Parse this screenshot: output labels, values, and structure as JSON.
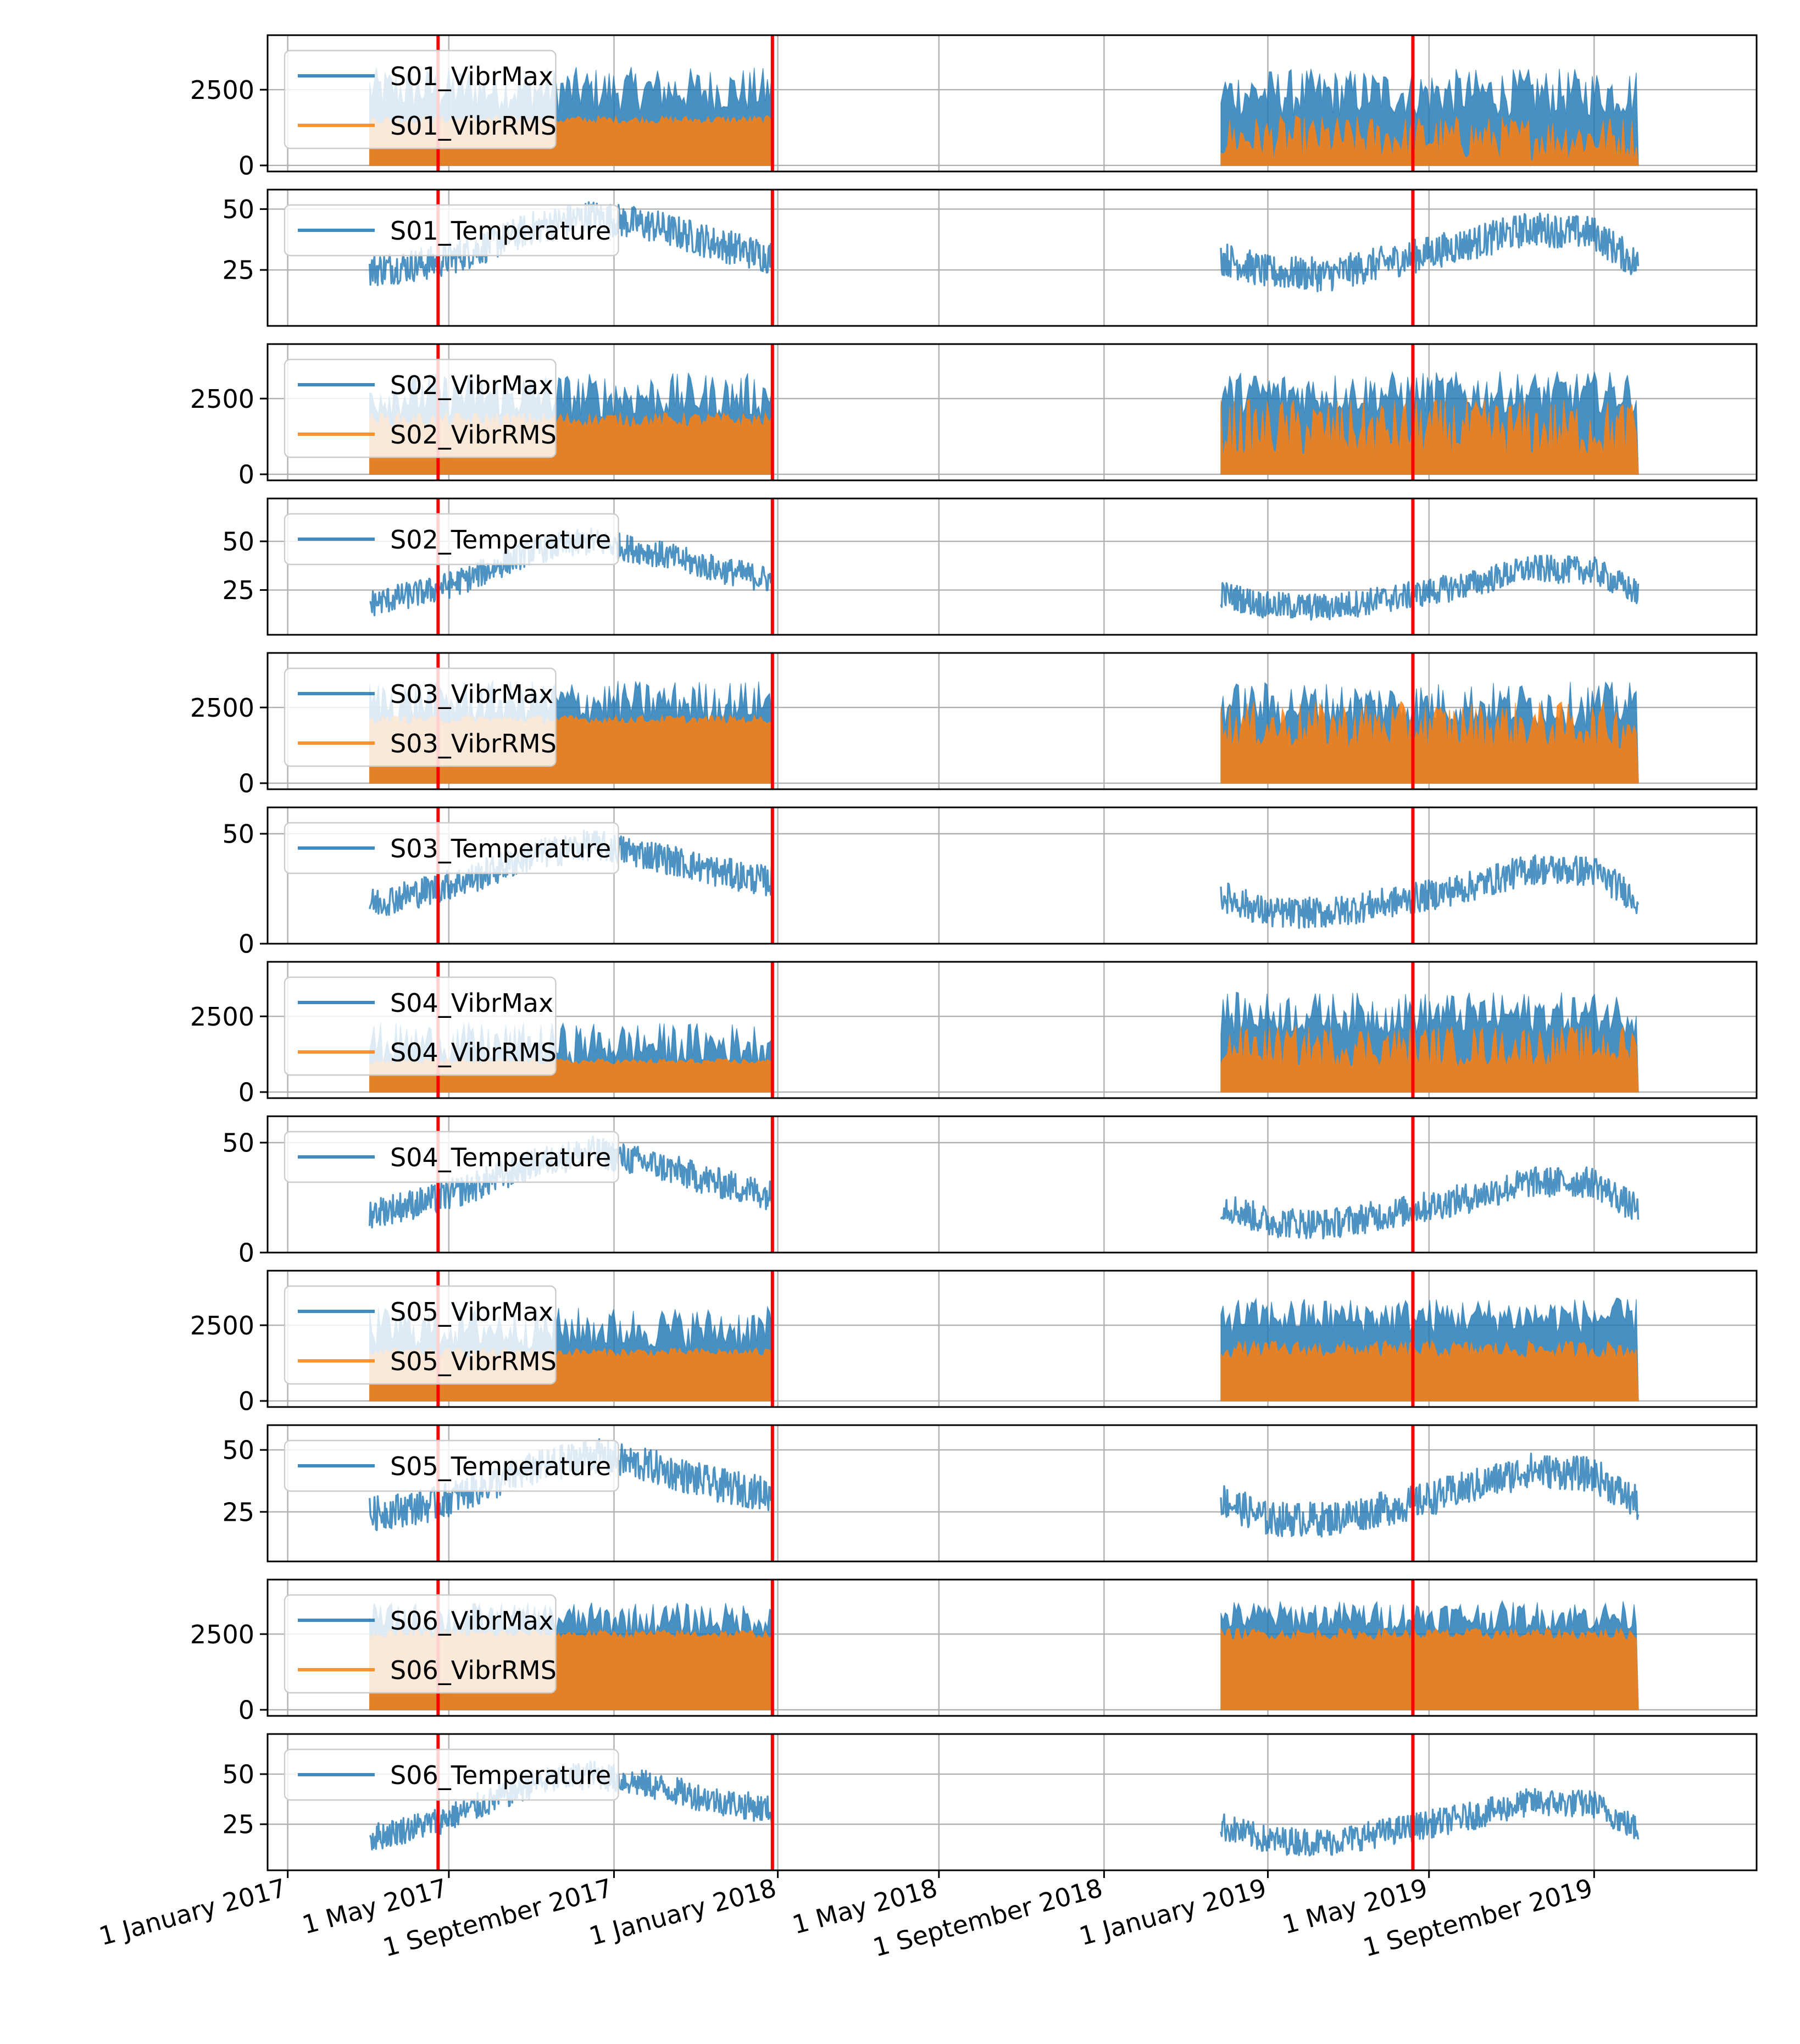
{
  "chart_data": {
    "type": "line",
    "x_axis": {
      "scale": "time",
      "range": [
        "2016-12-17",
        "2019-12-31"
      ],
      "ticks": [
        {
          "date": "2017-01-01",
          "label": "1 January 2017"
        },
        {
          "date": "2017-05-01",
          "label": "1 May 2017"
        },
        {
          "date": "2017-09-01",
          "label": "1 September 2017"
        },
        {
          "date": "2018-01-01",
          "label": "1 January 2018"
        },
        {
          "date": "2018-05-01",
          "label": "1 May 2018"
        },
        {
          "date": "2018-09-01",
          "label": "1 September 2018"
        },
        {
          "date": "2019-01-01",
          "label": "1 January 2019"
        },
        {
          "date": "2019-05-01",
          "label": "1 May 2019"
        },
        {
          "date": "2019-09-01",
          "label": "1 September 2019"
        }
      ],
      "tick_label_rotation": "slanted"
    },
    "grid": true,
    "legend_placement": "top-left",
    "series_colors": {
      "primary": "#1f77b4",
      "secondary": "#ff7f0e",
      "marker_line": "#ff0000"
    },
    "marker_lines": [
      "2017-04-23",
      "2017-12-28",
      "2019-04-19"
    ],
    "data_periods": [
      {
        "start": "2017-03-03",
        "end": "2017-12-28"
      },
      {
        "start": "2018-11-27",
        "end": "2019-10-04"
      }
    ],
    "panels": [
      {
        "id": "s01-vibr",
        "kind": "vibration",
        "yticks": [
          0,
          2500
        ],
        "ylim": [
          -200,
          4300
        ],
        "series": [
          {
            "name": "S01_VibrMax",
            "color": "#1f77b4",
            "segments": [
              {
                "start": "2017-03-03",
                "end": "2017-12-28",
                "base": 2500,
                "spread": 1500
              },
              {
                "start": "2018-11-27",
                "end": "2019-10-04",
                "base": 2400,
                "spread": 1600
              }
            ]
          },
          {
            "name": "S01_VibrRMS",
            "color": "#ff7f0e",
            "segments": [
              {
                "start": "2017-03-03",
                "end": "2017-12-28",
                "base": 1500,
                "spread": 300
              },
              {
                "start": "2018-11-27",
                "end": "2019-10-04",
                "base": 900,
                "spread": 1500
              }
            ]
          }
        ]
      },
      {
        "id": "s01-temp",
        "kind": "temperature",
        "yticks": [
          25,
          50
        ],
        "ylim": [
          2,
          58
        ],
        "series": [
          {
            "name": "S01_Temperature",
            "color": "#1f77b4",
            "points": [
              [
                "2017-03-03",
                25
              ],
              [
                "2017-04-20",
                28
              ],
              [
                "2017-05-20",
                33
              ],
              [
                "2017-07-01",
                42
              ],
              [
                "2017-08-15",
                47
              ],
              [
                "2017-10-01",
                43
              ],
              [
                "2017-11-15",
                36
              ],
              [
                "2017-12-28",
                30
              ],
              [
                "2018-11-27",
                30
              ],
              [
                "2019-01-01",
                24
              ],
              [
                "2019-02-15",
                23
              ],
              [
                "2019-04-15",
                30
              ],
              [
                "2019-06-01",
                36
              ],
              [
                "2019-07-15",
                42
              ],
              [
                "2019-09-01",
                40
              ],
              [
                "2019-10-04",
                27
              ]
            ]
          }
        ]
      },
      {
        "id": "s02-vibr",
        "kind": "vibration",
        "yticks": [
          0,
          2500
        ],
        "ylim": [
          -200,
          4300
        ],
        "series": [
          {
            "name": "S02_VibrMax",
            "color": "#1f77b4",
            "segments": [
              {
                "start": "2017-03-03",
                "end": "2017-12-28",
                "base": 2600,
                "spread": 1500
              },
              {
                "start": "2018-11-27",
                "end": "2019-10-04",
                "base": 2700,
                "spread": 1400
              }
            ]
          },
          {
            "name": "S02_VibrRMS",
            "color": "#ff7f0e",
            "segments": [
              {
                "start": "2017-03-03",
                "end": "2017-12-28",
                "base": 1800,
                "spread": 500
              },
              {
                "start": "2018-11-27",
                "end": "2019-10-04",
                "base": 1500,
                "spread": 2000
              }
            ]
          }
        ]
      },
      {
        "id": "s02-temp",
        "kind": "temperature",
        "yticks": [
          25,
          50
        ],
        "ylim": [
          2,
          72
        ],
        "series": [
          {
            "name": "S02_Temperature",
            "color": "#1f77b4",
            "points": [
              [
                "2017-03-03",
                18
              ],
              [
                "2017-04-20",
                25
              ],
              [
                "2017-05-20",
                32
              ],
              [
                "2017-07-01",
                45
              ],
              [
                "2017-08-15",
                50
              ],
              [
                "2017-10-01",
                44
              ],
              [
                "2017-11-15",
                36
              ],
              [
                "2017-12-28",
                30
              ],
              [
                "2018-11-27",
                23
              ],
              [
                "2019-01-01",
                17
              ],
              [
                "2019-02-15",
                16
              ],
              [
                "2019-04-15",
                22
              ],
              [
                "2019-06-01",
                28
              ],
              [
                "2019-07-15",
                36
              ],
              [
                "2019-09-01",
                35
              ],
              [
                "2019-10-04",
                23
              ]
            ]
          }
        ]
      },
      {
        "id": "s03-vibr",
        "kind": "vibration",
        "yticks": [
          0,
          2500
        ],
        "ylim": [
          -200,
          4300
        ],
        "series": [
          {
            "name": "S03_VibrMax",
            "color": "#1f77b4",
            "segments": [
              {
                "start": "2017-03-03",
                "end": "2017-12-28",
                "base": 2700,
                "spread": 1400
              },
              {
                "start": "2018-11-27",
                "end": "2019-10-04",
                "base": 2600,
                "spread": 1500
              }
            ]
          },
          {
            "name": "S03_VibrRMS",
            "color": "#ff7f0e",
            "segments": [
              {
                "start": "2017-03-03",
                "end": "2017-12-28",
                "base": 2100,
                "spread": 300
              },
              {
                "start": "2018-11-27",
                "end": "2019-10-04",
                "base": 1900,
                "spread": 1600
              }
            ]
          }
        ]
      },
      {
        "id": "s03-temp",
        "kind": "temperature",
        "yticks": [
          0,
          50
        ],
        "ylim": [
          0,
          62
        ],
        "series": [
          {
            "name": "S03_Temperature",
            "color": "#1f77b4",
            "points": [
              [
                "2017-03-03",
                18
              ],
              [
                "2017-04-20",
                25
              ],
              [
                "2017-05-20",
                30
              ],
              [
                "2017-07-01",
                40
              ],
              [
                "2017-08-15",
                45
              ],
              [
                "2017-10-01",
                40
              ],
              [
                "2017-11-15",
                33
              ],
              [
                "2017-12-28",
                28
              ],
              [
                "2018-11-27",
                22
              ],
              [
                "2019-01-01",
                14
              ],
              [
                "2019-02-15",
                14
              ],
              [
                "2019-04-15",
                20
              ],
              [
                "2019-06-01",
                26
              ],
              [
                "2019-07-15",
                34
              ],
              [
                "2019-09-01",
                33
              ],
              [
                "2019-10-04",
                20
              ]
            ]
          }
        ]
      },
      {
        "id": "s04-vibr",
        "kind": "vibration",
        "yticks": [
          0,
          2500
        ],
        "ylim": [
          -200,
          4300
        ],
        "series": [
          {
            "name": "S04_VibrMax",
            "color": "#1f77b4",
            "segments": [
              {
                "start": "2017-03-03",
                "end": "2017-12-28",
                "base": 1600,
                "spread": 1400
              },
              {
                "start": "2018-11-27",
                "end": "2019-10-04",
                "base": 2600,
                "spread": 1400
              }
            ]
          },
          {
            "name": "S04_VibrRMS",
            "color": "#ff7f0e",
            "segments": [
              {
                "start": "2017-03-03",
                "end": "2017-12-28",
                "base": 1000,
                "spread": 200
              },
              {
                "start": "2018-11-27",
                "end": "2019-10-04",
                "base": 1500,
                "spread": 1400
              }
            ]
          }
        ]
      },
      {
        "id": "s04-temp",
        "kind": "temperature",
        "yticks": [
          0,
          50
        ],
        "ylim": [
          0,
          62
        ],
        "series": [
          {
            "name": "S04_Temperature",
            "color": "#1f77b4",
            "points": [
              [
                "2017-03-03",
                18
              ],
              [
                "2017-04-20",
                24
              ],
              [
                "2017-05-20",
                30
              ],
              [
                "2017-07-01",
                40
              ],
              [
                "2017-08-15",
                46
              ],
              [
                "2017-10-01",
                40
              ],
              [
                "2017-11-15",
                32
              ],
              [
                "2017-12-28",
                26
              ],
              [
                "2018-11-27",
                22
              ],
              [
                "2019-01-01",
                14
              ],
              [
                "2019-02-15",
                13
              ],
              [
                "2019-04-15",
                19
              ],
              [
                "2019-06-01",
                25
              ],
              [
                "2019-07-15",
                32
              ],
              [
                "2019-09-01",
                32
              ],
              [
                "2019-10-04",
                19
              ]
            ]
          }
        ]
      },
      {
        "id": "s05-vibr",
        "kind": "vibration",
        "yticks": [
          0,
          2500
        ],
        "ylim": [
          -200,
          4300
        ],
        "series": [
          {
            "name": "S05_VibrMax",
            "color": "#1f77b4",
            "segments": [
              {
                "start": "2017-03-03",
                "end": "2017-12-28",
                "base": 2400,
                "spread": 1400
              },
              {
                "start": "2018-11-27",
                "end": "2019-10-04",
                "base": 2800,
                "spread": 1200
              }
            ]
          },
          {
            "name": "S05_VibrRMS",
            "color": "#ff7f0e",
            "segments": [
              {
                "start": "2017-03-03",
                "end": "2017-12-28",
                "base": 1600,
                "spread": 300
              },
              {
                "start": "2018-11-27",
                "end": "2019-10-04",
                "base": 1700,
                "spread": 600
              }
            ]
          }
        ]
      },
      {
        "id": "s05-temp",
        "kind": "temperature",
        "yticks": [
          25,
          50
        ],
        "ylim": [
          5,
          60
        ],
        "series": [
          {
            "name": "S05_Temperature",
            "color": "#1f77b4",
            "points": [
              [
                "2017-03-03",
                24
              ],
              [
                "2017-04-20",
                28
              ],
              [
                "2017-05-20",
                34
              ],
              [
                "2017-07-01",
                42
              ],
              [
                "2017-08-15",
                48
              ],
              [
                "2017-10-01",
                43
              ],
              [
                "2017-11-15",
                36
              ],
              [
                "2017-12-28",
                32
              ],
              [
                "2018-11-27",
                30
              ],
              [
                "2019-01-01",
                22
              ],
              [
                "2019-02-15",
                22
              ],
              [
                "2019-04-15",
                28
              ],
              [
                "2019-06-01",
                35
              ],
              [
                "2019-07-15",
                42
              ],
              [
                "2019-09-01",
                40
              ],
              [
                "2019-10-04",
                28
              ]
            ]
          }
        ]
      },
      {
        "id": "s06-vibr",
        "kind": "vibration",
        "yticks": [
          0,
          2500
        ],
        "ylim": [
          -200,
          4300
        ],
        "series": [
          {
            "name": "S06_VibrMax",
            "color": "#1f77b4",
            "segments": [
              {
                "start": "2017-03-03",
                "end": "2017-12-28",
                "base": 3000,
                "spread": 1100
              },
              {
                "start": "2018-11-27",
                "end": "2019-10-04",
                "base": 3100,
                "spread": 1000
              }
            ]
          },
          {
            "name": "S06_VibrRMS",
            "color": "#ff7f0e",
            "segments": [
              {
                "start": "2017-03-03",
                "end": "2017-12-28",
                "base": 2500,
                "spread": 300
              },
              {
                "start": "2018-11-27",
                "end": "2019-10-04",
                "base": 2500,
                "spread": 400
              }
            ]
          }
        ]
      },
      {
        "id": "s06-temp",
        "kind": "temperature",
        "yticks": [
          25,
          50
        ],
        "ylim": [
          2,
          70
        ],
        "series": [
          {
            "name": "S06_Temperature",
            "color": "#1f77b4",
            "points": [
              [
                "2017-03-03",
                18
              ],
              [
                "2017-04-20",
                26
              ],
              [
                "2017-05-20",
                33
              ],
              [
                "2017-07-01",
                45
              ],
              [
                "2017-08-15",
                50
              ],
              [
                "2017-10-01",
                44
              ],
              [
                "2017-11-15",
                37
              ],
              [
                "2017-12-28",
                32
              ],
              [
                "2018-11-27",
                24
              ],
              [
                "2019-01-01",
                17
              ],
              [
                "2019-02-15",
                16
              ],
              [
                "2019-04-15",
                23
              ],
              [
                "2019-06-01",
                29
              ],
              [
                "2019-07-15",
                36
              ],
              [
                "2019-09-01",
                35
              ],
              [
                "2019-10-04",
                22
              ]
            ]
          }
        ]
      }
    ]
  }
}
